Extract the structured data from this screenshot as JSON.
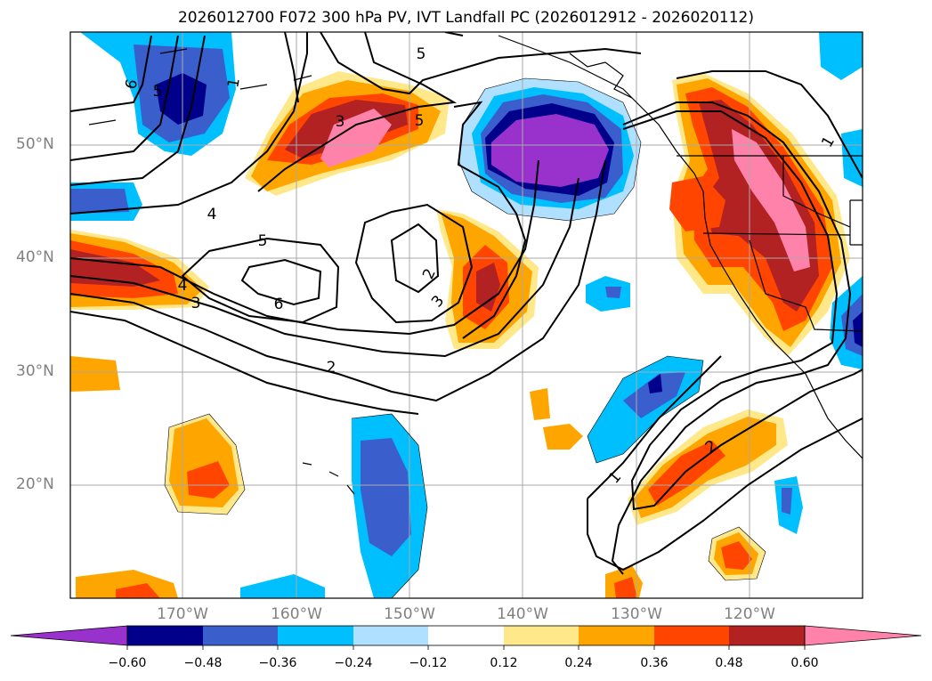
{
  "title": "2026012700 F072 300 hPa PV, IVT Landfall PC (2026012912 - 2026020112)",
  "map": {
    "lat_labels": [
      "50°N",
      "40°N",
      "30°N",
      "20°N"
    ],
    "lon_labels": [
      "170°W",
      "160°W",
      "150°W",
      "140°W",
      "130°W",
      "120°W"
    ],
    "pv_contour_labels": [
      "6",
      "5",
      "1",
      "5",
      "3",
      "5",
      "4",
      "5",
      "6",
      "2",
      "3",
      "4",
      "3",
      "2",
      "1",
      "2",
      "1"
    ]
  },
  "colorbar": {
    "ticks": [
      "−0.60",
      "−0.48",
      "−0.36",
      "−0.24",
      "−0.12",
      "0.12",
      "0.24",
      "0.36",
      "0.48",
      "0.60"
    ],
    "colors": [
      "#9932cc",
      "#00008b",
      "#3a5fcd",
      "#00bfff",
      "#b0e0ff",
      "#ffffff",
      "#ffe88a",
      "#ffa500",
      "#ff4500",
      "#b22222",
      "#ff82ab"
    ]
  }
}
